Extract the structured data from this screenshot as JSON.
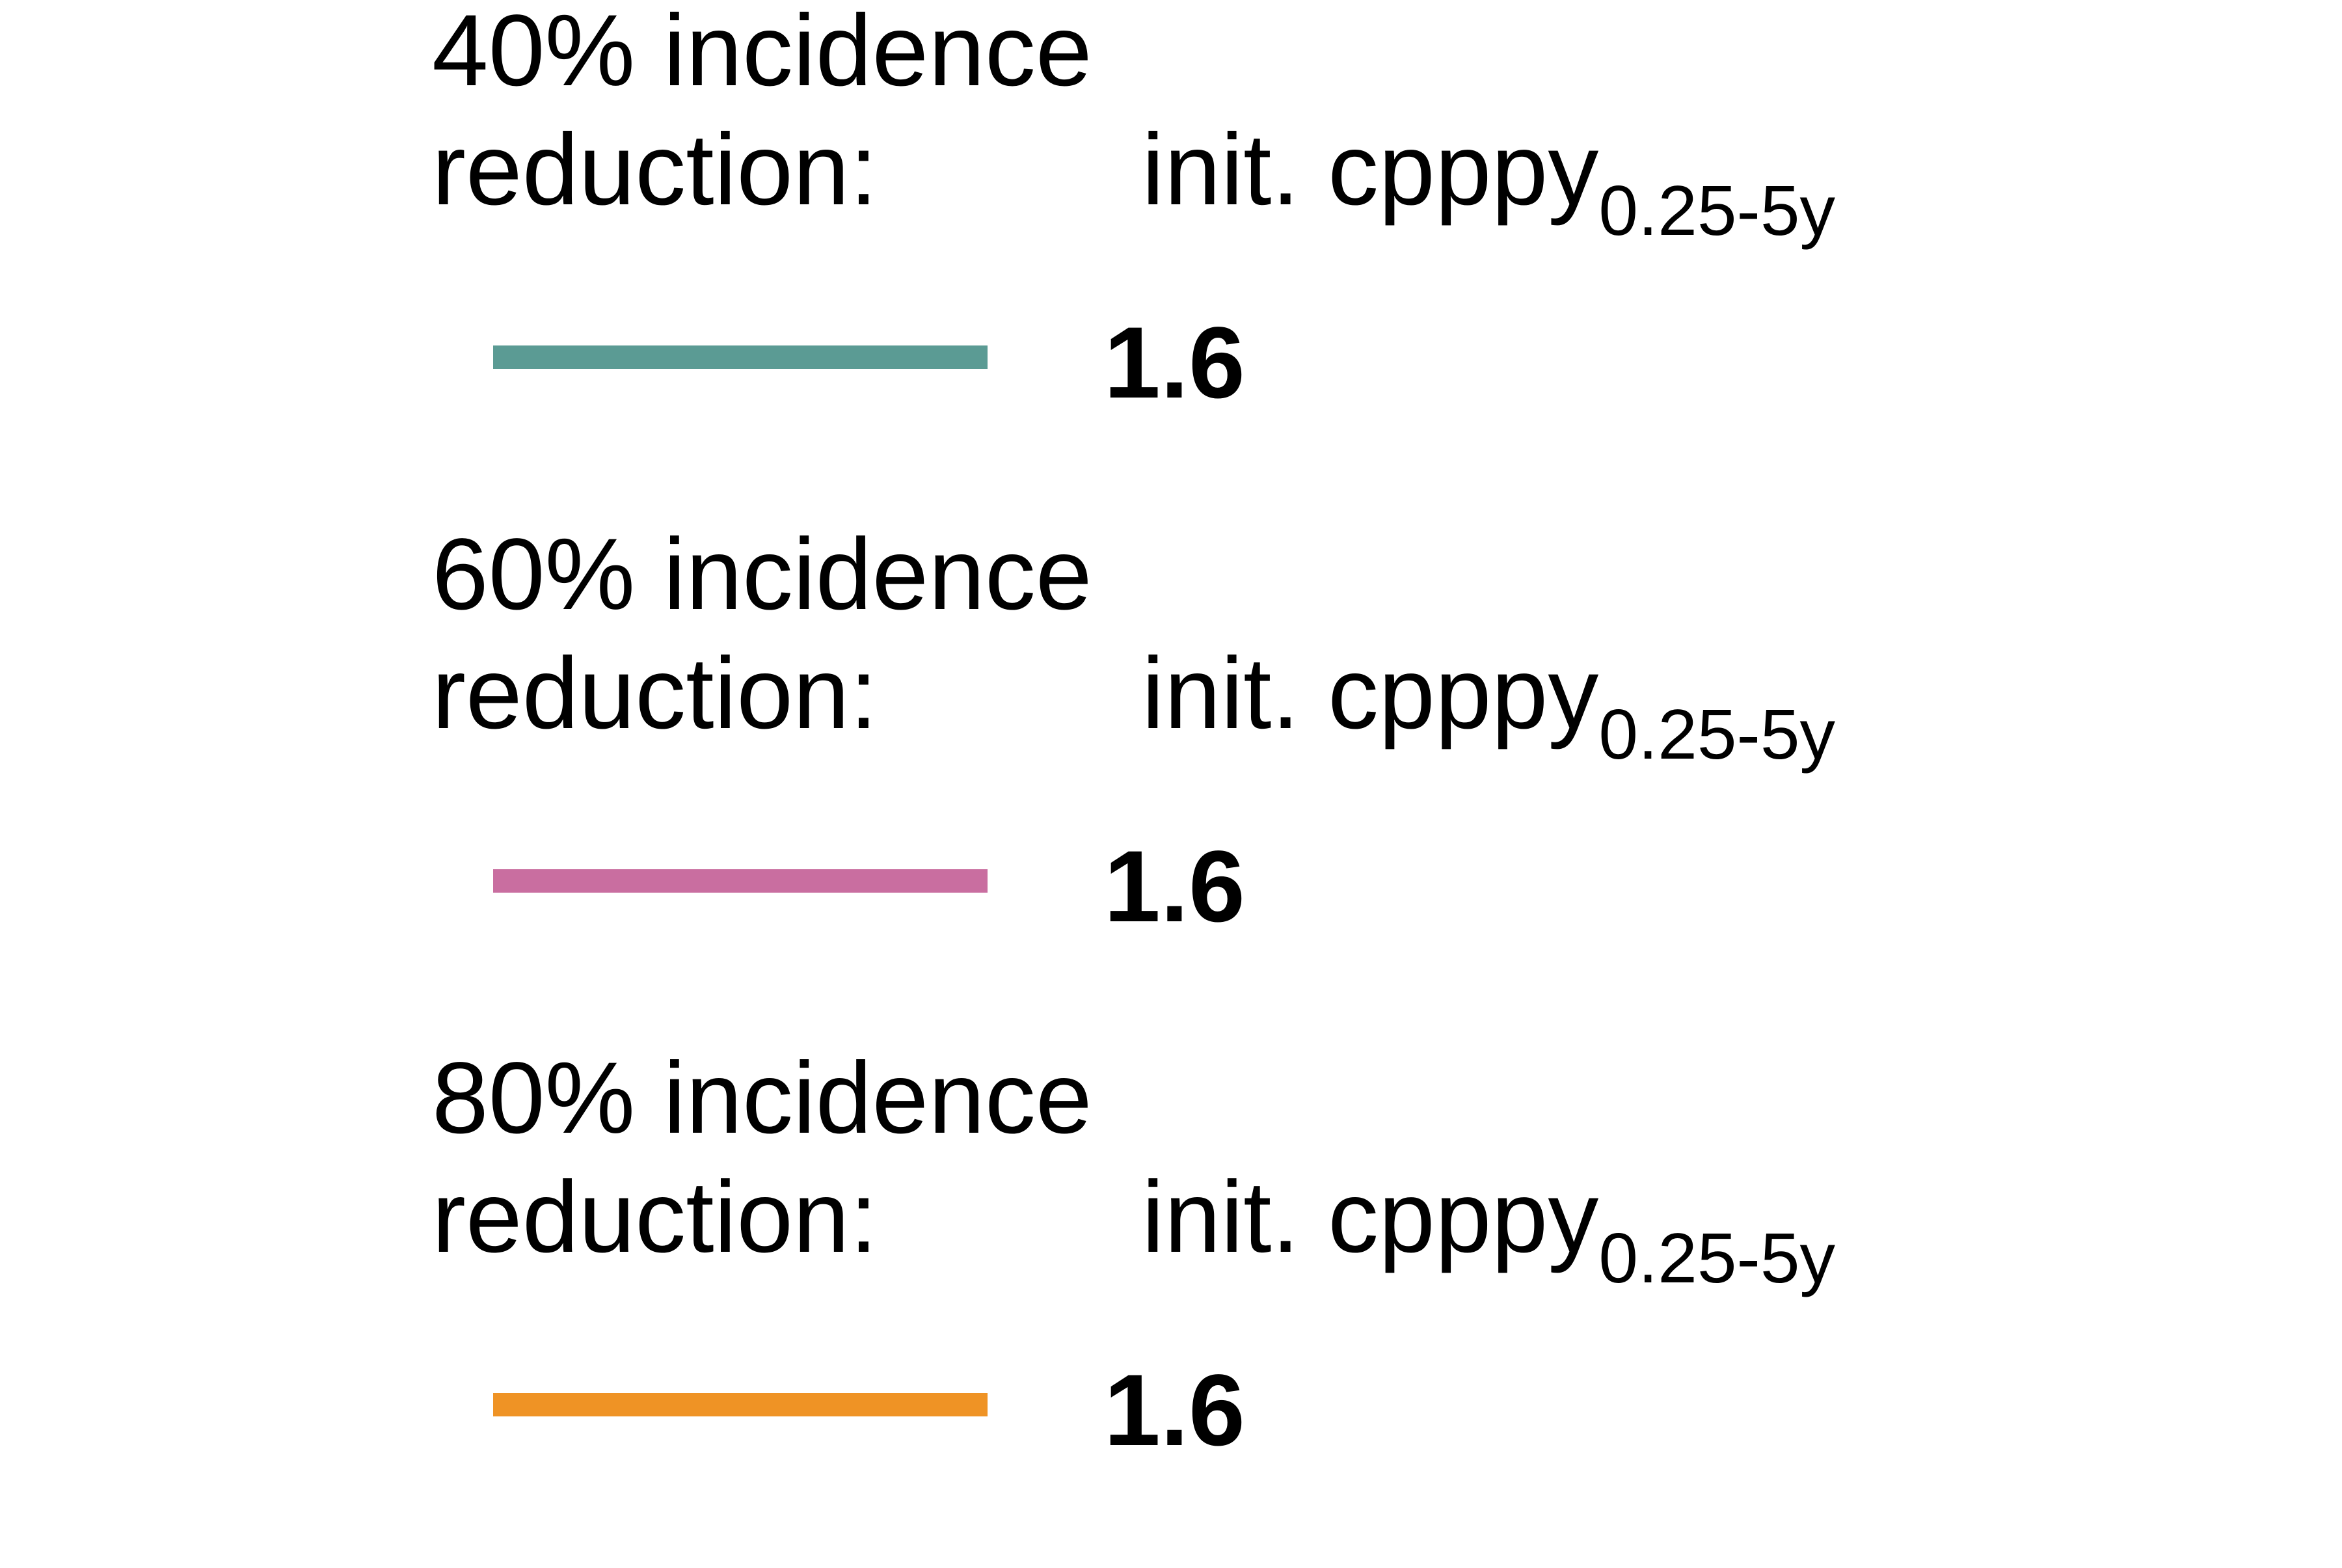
{
  "legend": {
    "items": [
      {
        "title_line1": "40% incidence",
        "title_line2": "reduction:",
        "metric_main": "init. cpppy",
        "metric_sub": "0.25-5y",
        "value": "1.6",
        "color": "#5b9b94"
      },
      {
        "title_line1": "60% incidence",
        "title_line2": "reduction:",
        "metric_main": "init. cpppy",
        "metric_sub": "0.25-5y",
        "value": "1.6",
        "color": "#c96ea0"
      },
      {
        "title_line1": "80% incidence",
        "title_line2": "reduction:",
        "metric_main": "init. cpppy",
        "metric_sub": "0.25-5y",
        "value": "1.6",
        "color": "#ef9325"
      }
    ]
  }
}
